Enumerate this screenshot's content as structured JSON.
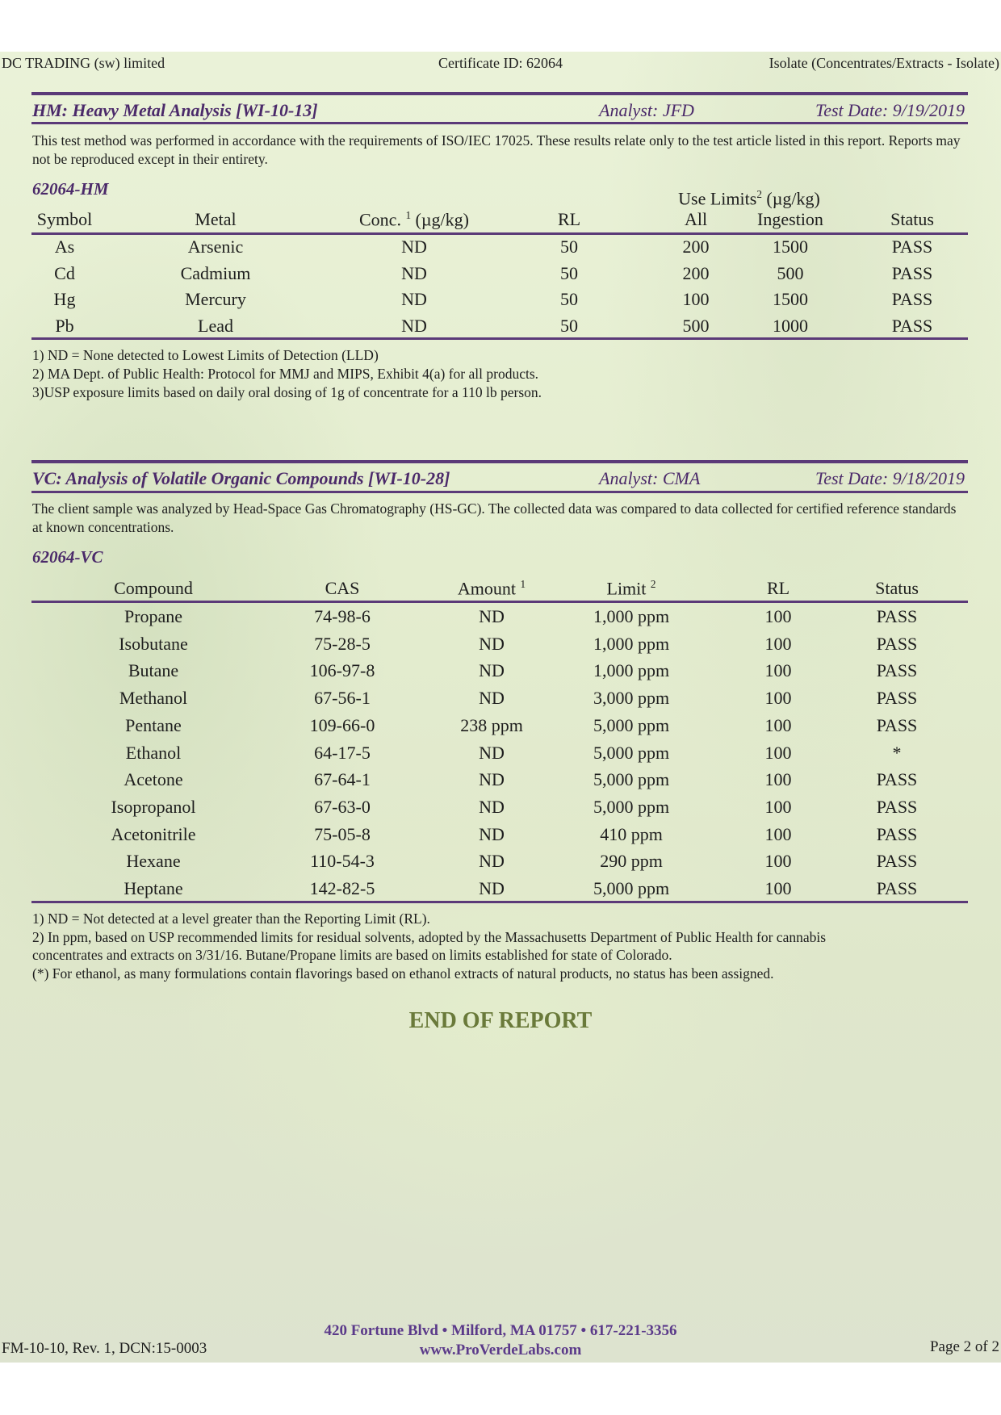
{
  "header": {
    "client": "DC TRADING (sw) limited",
    "certificate": "Certificate ID: 62064",
    "matrix": "Isolate (Concentrates/Extracts - Isolate)"
  },
  "hm": {
    "title": "HM: Heavy Metal Analysis [WI-10-13]",
    "analyst": "Analyst: JFD",
    "test_date": "Test Date: 9/19/2019",
    "description": "This test method was performed in accordance with the requirements of ISO/IEC 17025. These results relate only to the test article listed in this report.  Reports may not be reproduced except in their entirety.",
    "sample_id": "62064-HM",
    "use_limits_label": "Use Limits",
    "use_limits_sup": "2",
    "use_limits_unit": "(µg/kg)",
    "columns": [
      {
        "label": "Symbol",
        "sup": ""
      },
      {
        "label": "Metal",
        "sup": ""
      },
      {
        "label": "Conc.",
        "sup": "1",
        "unit": "(µg/kg)"
      },
      {
        "label": "RL",
        "sup": ""
      },
      {
        "label": "All",
        "sup": ""
      },
      {
        "label": "Ingestion",
        "sup": ""
      },
      {
        "label": "Status",
        "sup": ""
      }
    ],
    "rows": [
      [
        "As",
        "Arsenic",
        "ND",
        "50",
        "200",
        "1500",
        "PASS"
      ],
      [
        "Cd",
        "Cadmium",
        "ND",
        "50",
        "200",
        "500",
        "PASS"
      ],
      [
        "Hg",
        "Mercury",
        "ND",
        "50",
        "100",
        "1500",
        "PASS"
      ],
      [
        "Pb",
        "Lead",
        "ND",
        "50",
        "500",
        "1000",
        "PASS"
      ]
    ],
    "footnotes": [
      "1) ND = None detected to Lowest Limits of Detection (LLD)",
      "2) MA Dept. of Public Health: Protocol for MMJ and MIPS, Exhibit 4(a) for all products.",
      "3)USP exposure limits based on daily oral dosing of 1g of concentrate for a 110 lb person."
    ]
  },
  "vc": {
    "title": "VC: Analysis of Volatile Organic Compounds [WI-10-28]",
    "analyst": "Analyst: CMA",
    "test_date": "Test Date: 9/18/2019",
    "description": "The client sample was analyzed by Head-Space Gas Chromatography (HS-GC).  The collected data was compared to data collected for certified reference standards at known concentrations.",
    "sample_id": "62064-VC",
    "columns": [
      {
        "label": "Compound",
        "sup": ""
      },
      {
        "label": "CAS",
        "sup": ""
      },
      {
        "label": "Amount",
        "sup": "1"
      },
      {
        "label": "Limit",
        "sup": "2"
      },
      {
        "label": "RL",
        "sup": ""
      },
      {
        "label": "Status",
        "sup": ""
      }
    ],
    "rows": [
      [
        "Propane",
        "74-98-6",
        "ND",
        "1,000 ppm",
        "100",
        "PASS"
      ],
      [
        "Isobutane",
        "75-28-5",
        "ND",
        "1,000 ppm",
        "100",
        "PASS"
      ],
      [
        "Butane",
        "106-97-8",
        "ND",
        "1,000 ppm",
        "100",
        "PASS"
      ],
      [
        "Methanol",
        "67-56-1",
        "ND",
        "3,000 ppm",
        "100",
        "PASS"
      ],
      [
        "Pentane",
        "109-66-0",
        "238 ppm",
        "5,000 ppm",
        "100",
        "PASS"
      ],
      [
        "Ethanol",
        "64-17-5",
        "ND",
        "5,000 ppm",
        "100",
        "*"
      ],
      [
        "Acetone",
        "67-64-1",
        "ND",
        "5,000 ppm",
        "100",
        "PASS"
      ],
      [
        "Isopropanol",
        "67-63-0",
        "ND",
        "5,000 ppm",
        "100",
        "PASS"
      ],
      [
        "Acetonitrile",
        "75-05-8",
        "ND",
        "410 ppm",
        "100",
        "PASS"
      ],
      [
        "Hexane",
        "110-54-3",
        "ND",
        "290 ppm",
        "100",
        "PASS"
      ],
      [
        "Heptane",
        "142-82-5",
        "ND",
        "5,000 ppm",
        "100",
        "PASS"
      ]
    ],
    "footnotes": [
      "1) ND = Not detected at a level greater than the Reporting Limit (RL).",
      "2) In ppm, based on USP recommended limits for residual solvents, adopted by the Massachusetts Department of Public Health for cannabis",
      "concentrates and extracts on 3/31/16. Butane/Propane limits are based on limits established for state of Colorado.",
      "(*) For ethanol, as many formulations contain flavorings based on ethanol extracts of natural products, no status has been assigned."
    ]
  },
  "end_label": "END OF REPORT",
  "footer": {
    "form": "FM-10-10, Rev. 1, DCN:15-0003",
    "address": "420 Fortune Blvd • Milford, MA 01757 • 617-221-3356",
    "website": "www.ProVerdeLabs.com",
    "page": "Page 2 of 2"
  },
  "colors": {
    "accent": "#5b3a78",
    "end_label": "#6a7a3a"
  }
}
